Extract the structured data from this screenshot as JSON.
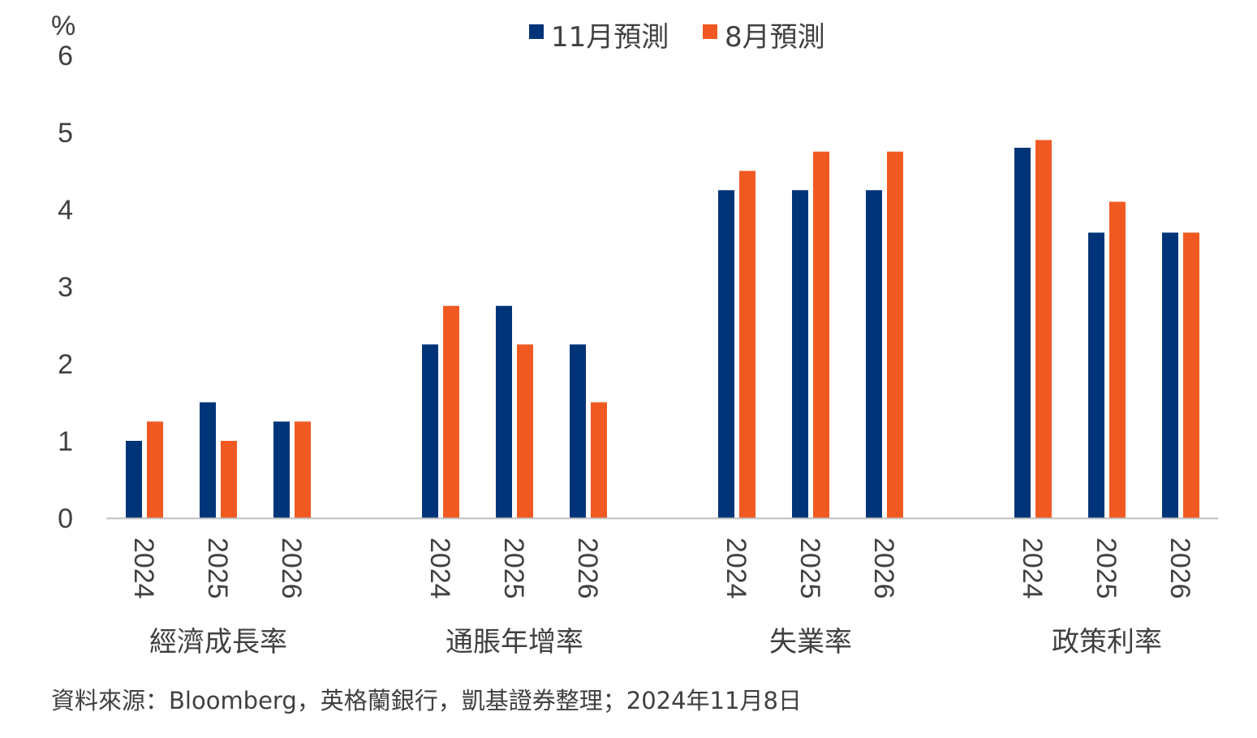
{
  "chart_data": {
    "type": "bar",
    "title": "",
    "ylabel": "%",
    "ylim": [
      0,
      6
    ],
    "yticks": [
      "0",
      "1",
      "2",
      "3",
      "4",
      "5",
      "6"
    ],
    "grid": false,
    "legend_position": "top-center",
    "groups": [
      {
        "label": "經濟成長率",
        "years": [
          "2024",
          "2025",
          "2026"
        ]
      },
      {
        "label": "通脹年增率",
        "years": [
          "2024",
          "2025",
          "2026"
        ]
      },
      {
        "label": "失業率",
        "years": [
          "2024",
          "2025",
          "2026"
        ]
      },
      {
        "label": "政策利率",
        "years": [
          "2024",
          "2025",
          "2026"
        ]
      }
    ],
    "series": [
      {
        "name": "11月預測",
        "color": "#003478",
        "values": [
          1.0,
          1.5,
          1.25,
          2.25,
          2.75,
          2.25,
          4.25,
          4.25,
          4.25,
          4.8,
          3.7,
          3.7
        ]
      },
      {
        "name": "8月預測",
        "color": "#F05A22",
        "values": [
          1.25,
          1.0,
          1.25,
          2.75,
          2.25,
          1.5,
          4.5,
          4.75,
          4.75,
          4.9,
          4.1,
          3.7
        ]
      }
    ]
  },
  "source": "資料來源：Bloomberg，英格蘭銀行，凱基證券整理；2024年11月8日"
}
